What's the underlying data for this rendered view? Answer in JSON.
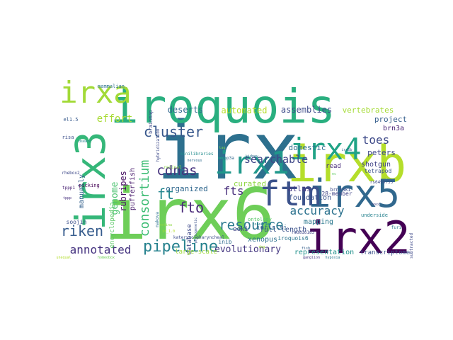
{
  "cloud": {
    "words": [
      {
        "text": "irx",
        "color": "#2d708e"
      },
      {
        "text": "iroquois",
        "color": "#29af7f"
      },
      {
        "text": "irx6",
        "color": "#6ece58"
      },
      {
        "text": "irxb",
        "color": "#b5de2b"
      },
      {
        "text": "irx2",
        "color": "#440154"
      },
      {
        "text": "irx5",
        "color": "#31688e"
      },
      {
        "text": "ftm",
        "color": "#3b528b"
      },
      {
        "text": "irx4",
        "color": "#20a386"
      },
      {
        "text": "irx3",
        "color": "#35b779"
      },
      {
        "text": "irxa",
        "color": "#a2da37"
      },
      {
        "text": "irx1",
        "color": "#1f988b"
      },
      {
        "text": "cluster",
        "color": "#38588c"
      },
      {
        "text": "pipeline",
        "color": "#26828e"
      },
      {
        "text": "resource",
        "color": "#2a788e"
      },
      {
        "text": "riken",
        "color": "#365c8d"
      },
      {
        "text": "annotated",
        "color": "#463480"
      },
      {
        "text": "consortium",
        "color": "#3dbc74"
      },
      {
        "text": "cdnas",
        "color": "#46327e"
      },
      {
        "text": "fto",
        "color": "#482878"
      },
      {
        "text": "accuracy",
        "color": "#2c728e"
      },
      {
        "text": "searchable",
        "color": "#3f4788"
      },
      {
        "text": "effort",
        "color": "#a8db34"
      },
      {
        "text": "toes",
        "color": "#3e4a89"
      },
      {
        "text": "ft",
        "color": "#24868e"
      },
      {
        "text": "fts",
        "color": "#472d7b"
      },
      {
        "text": "genome",
        "color": "#48c16e"
      },
      {
        "text": "evolutionary",
        "color": "#453781"
      },
      {
        "text": "organized",
        "color": "#31688e"
      },
      {
        "text": "curated",
        "color": "#8fd744"
      },
      {
        "text": "domestic",
        "color": "#2e6f8e"
      },
      {
        "text": "atlas",
        "color": "#443983"
      },
      {
        "text": "foundation",
        "color": "#3b528b"
      },
      {
        "text": "deserts",
        "color": "#31688e"
      },
      {
        "text": "automated",
        "color": "#b8de29"
      },
      {
        "text": "assemblies",
        "color": "#3e4c8a"
      },
      {
        "text": "vertebrates",
        "color": "#a5db36"
      },
      {
        "text": "project",
        "color": "#355e8d"
      },
      {
        "text": "peters",
        "color": "#3f4889"
      },
      {
        "text": "brn3a",
        "color": "#482475"
      },
      {
        "text": "rubripes",
        "color": "#471063"
      },
      {
        "text": "manually",
        "color": "#34618d"
      },
      {
        "text": "full-length",
        "color": "#3b528b"
      },
      {
        "text": "mapping",
        "color": "#2a788e"
      },
      {
        "text": "xenopus",
        "color": "#2d708e"
      },
      {
        "text": "aoki",
        "color": "#404387"
      },
      {
        "text": "pufferfish",
        "color": "#481a6c"
      },
      {
        "text": "encyclopedia",
        "color": "#5ac864"
      },
      {
        "text": "shotgun",
        "color": "#414487"
      },
      {
        "text": "representation",
        "color": "#21918c"
      },
      {
        "text": "transcriptome",
        "color": "#3b528b"
      },
      {
        "text": "read",
        "color": "#472c7a"
      },
      {
        "text": "infls-si",
        "color": "#31688e"
      },
      {
        "text": "database",
        "color": "#3e4989"
      },
      {
        "text": "inib",
        "color": "#2f6c8e"
      },
      {
        "text": "large-scale",
        "color": "#9fda3a"
      },
      {
        "text": "tetrapod",
        "color": "#3b528b"
      },
      {
        "text": "28-member",
        "color": "#414487"
      },
      {
        "text": "soojin",
        "color": "#3c508b"
      },
      {
        "text": "mammalian",
        "color": "#2c728e"
      },
      {
        "text": "brainmap",
        "color": "#3e4c8a"
      },
      {
        "text": "hybridization",
        "color": "#3e4a89"
      },
      {
        "text": "minilibraries",
        "color": "#228c8d"
      },
      {
        "text": "picking",
        "color": "#440154"
      },
      {
        "text": "brn3aki",
        "color": "#3d4e8a"
      },
      {
        "text": "rs6499755",
        "color": "#3e4c8a"
      },
      {
        "text": "ontology",
        "color": "#56c667"
      },
      {
        "text": "underside",
        "color": "#26828e"
      },
      {
        "text": "kateryno-pharyncheal",
        "color": "#3d4d8a"
      },
      {
        "text": "iroquois6",
        "color": "#2b758e"
      },
      {
        "text": "rs3816183",
        "color": "#404688"
      },
      {
        "text": "el1.5",
        "color": "#375a8c"
      },
      {
        "text": "risa",
        "color": "#3c4f8a"
      },
      {
        "text": "tppp1",
        "color": "#482173"
      },
      {
        "text": "tppp3a",
        "color": "#31688e"
      },
      {
        "text": "rhebox2",
        "color": "#3e4989"
      },
      {
        "text": "tppp",
        "color": "#46307e"
      },
      {
        "text": "makova",
        "color": "#2d708e"
      },
      {
        "text": "retinal",
        "color": "#8bd646"
      },
      {
        "text": "subtracted",
        "color": "#3e4989"
      },
      {
        "text": "hoxc",
        "color": "#414487"
      },
      {
        "text": "furi",
        "color": "#2a768e"
      },
      {
        "text": "fish",
        "color": "#355f8d"
      },
      {
        "text": "dsearc",
        "color": "#27808e"
      },
      {
        "text": "irx5b",
        "color": "#34618d"
      },
      {
        "text": "phylogenetic",
        "color": "#3b528b"
      },
      {
        "text": "ganglion",
        "color": "#453781"
      },
      {
        "text": "hypoxia",
        "color": "#29798e"
      },
      {
        "text": "kidney",
        "color": "#2e6e8e"
      },
      {
        "text": "nervous",
        "color": "#2f6b8e"
      },
      {
        "text": "retina",
        "color": "#8fd744"
      },
      {
        "text": "unequal",
        "color": "#b2dd2d"
      },
      {
        "text": "homeobox",
        "color": "#6ece58"
      },
      {
        "text": "conserved",
        "color": "#25848e"
      },
      {
        "text": "ir_1.0",
        "color": "#b5de2b"
      },
      {
        "text": "dog",
        "color": "#9fda3a"
      },
      {
        "text": "tag",
        "color": "#7ad151"
      },
      {
        "text": "nc",
        "color": "#5ec962"
      }
    ]
  }
}
